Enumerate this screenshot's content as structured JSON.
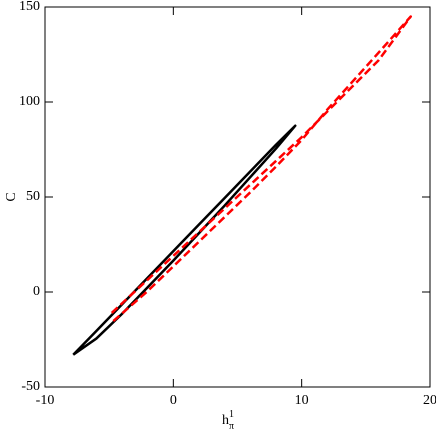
{
  "chart_data": {
    "type": "line",
    "xlabel": {
      "base": "h",
      "sup": "1",
      "sub": "π"
    },
    "ylabel": "C",
    "xlim": [
      -10,
      20
    ],
    "xticks": [
      -10,
      0,
      10,
      20
    ],
    "ylim": [
      -50,
      150
    ],
    "yticks": [
      -50,
      0,
      50,
      100,
      150
    ],
    "series": [
      {
        "color": "#000000",
        "dashed": false,
        "x": [
          -7.8,
          -6,
          -4,
          -2,
          0,
          2,
          4,
          6,
          8,
          9.5,
          8,
          6,
          4,
          2,
          0,
          -2,
          -4,
          -6,
          -7.8
        ],
        "values": [
          -33,
          -20.5,
          -6.5,
          7.5,
          21.5,
          35.5,
          49.5,
          63.5,
          77.5,
          87.5,
          75.5,
          60.5,
          45.5,
          31,
          16.5,
          2.5,
          -11.5,
          -24.5,
          -33
        ]
      },
      {
        "color": "#ff0000",
        "dashed": true,
        "x": [
          -4.8,
          -2,
          0,
          2,
          4,
          6,
          8,
          10,
          12,
          14,
          16,
          18.5,
          16,
          14,
          12,
          10,
          8,
          6,
          4,
          2,
          0,
          -2,
          -4.8
        ],
        "values": [
          -11,
          6.5,
          19,
          31.5,
          44,
          56.5,
          69,
          81.5,
          95,
          108.5,
          122,
          145,
          126,
          111,
          96,
          80,
          66,
          52.5,
          39.5,
          26.5,
          13.5,
          0.5,
          -16
        ]
      }
    ]
  }
}
